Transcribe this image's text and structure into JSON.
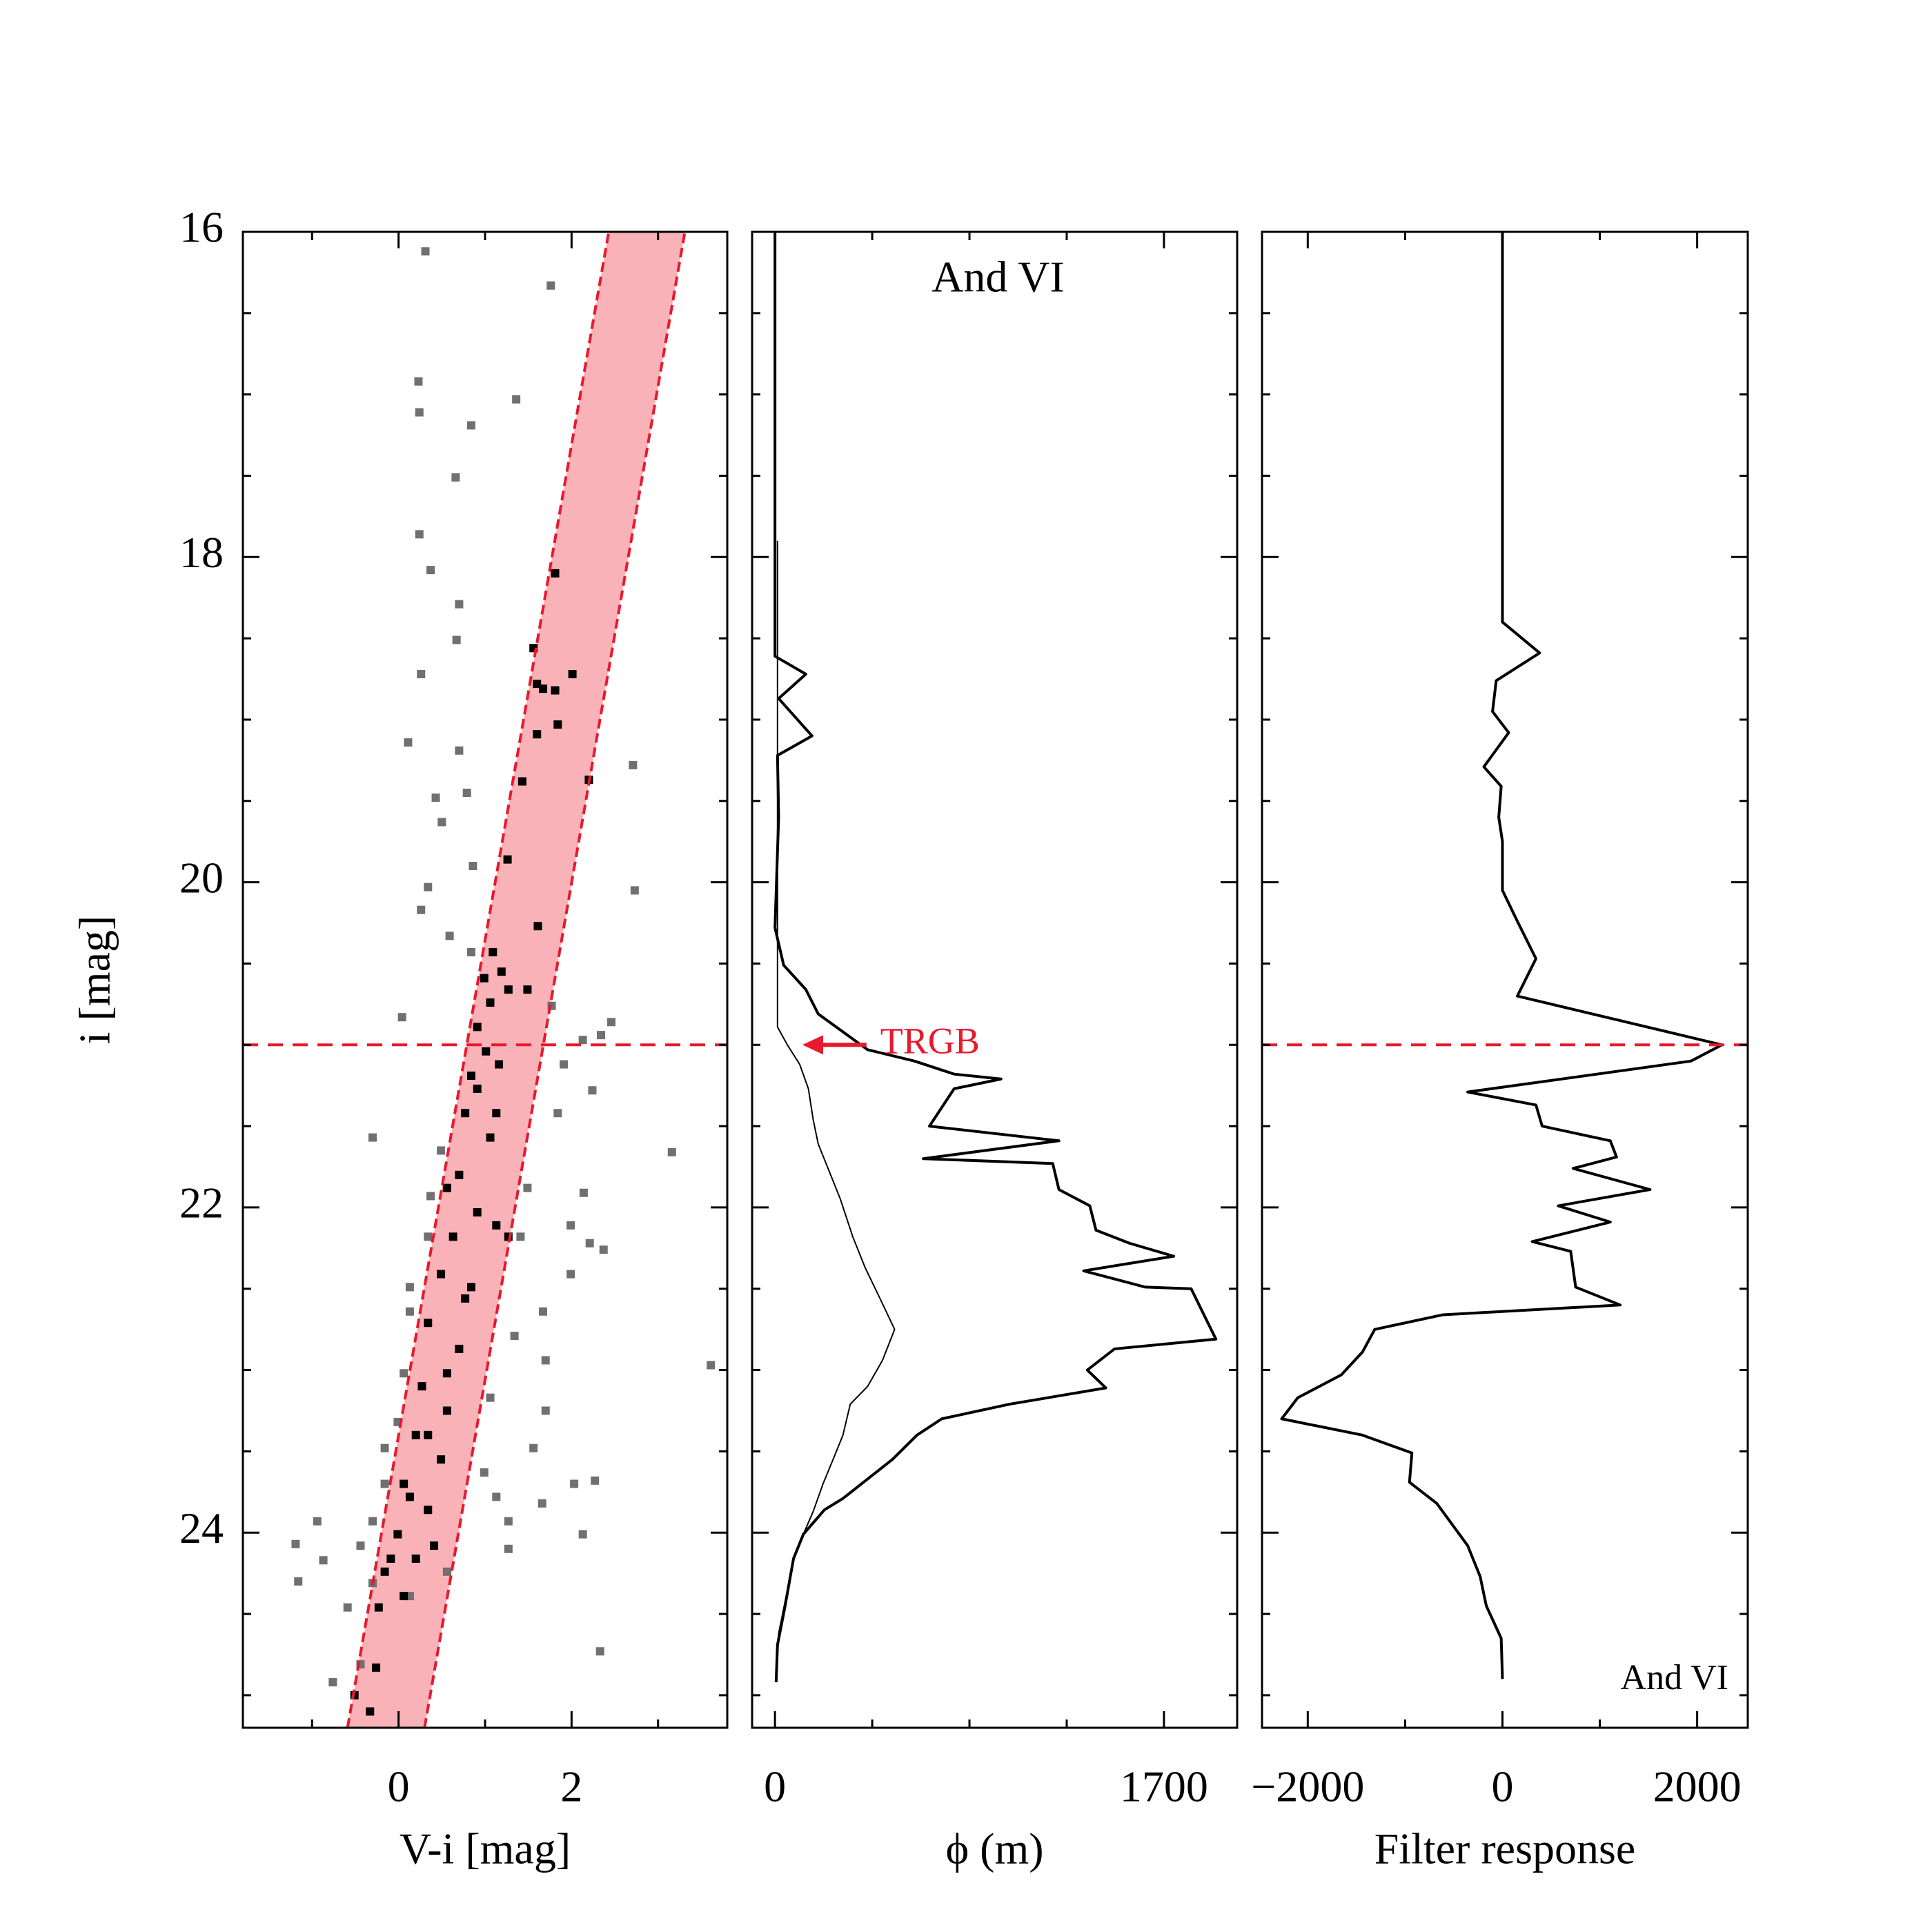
{
  "chart_data": [
    {
      "type": "scatter",
      "xlabel": "V-i [mag]",
      "ylabel": "i [mag]",
      "xlim": [
        -1.8,
        3.8
      ],
      "ylim": [
        16,
        25.2
      ],
      "xticks": [
        0,
        2
      ],
      "yticks": [
        16,
        18,
        20,
        22,
        24
      ],
      "xminorticks": [
        -1,
        1,
        3
      ],
      "yminorticks": [
        16.5,
        17,
        17.5,
        18.5,
        19,
        19.5,
        20.5,
        21,
        21.5,
        22.5,
        23,
        23.5,
        24.5,
        25
      ],
      "show_ytick_labels": true,
      "invert_y": true,
      "band": {
        "color": "#f9b3b8",
        "edge_color": "#e8192c",
        "left": {
          "x": [
            -0.59,
            2.43
          ],
          "y": [
            25.2,
            16
          ]
        },
        "right": {
          "x": [
            0.3,
            3.31
          ],
          "y": [
            25.2,
            16
          ]
        }
      },
      "hline": 21.0,
      "hline_color": "#e8192c",
      "series": [
        {
          "color": "#707070",
          "x": [
            0.31,
            1.76,
            0.23,
            0.24,
            1.36,
            0.84,
            0.66,
            0.24,
            0.37,
            0.7,
            0.67,
            0.26,
            0.11,
            0.7,
            0.43,
            0.79,
            2.71,
            0.5,
            0.26,
            0.34,
            0.86,
            2.73,
            0.59,
            0.84,
            0.04,
            1.77,
            2.46,
            2.34,
            1.91,
            2.24,
            3.16,
            -0.3,
            0.37,
            2.14,
            2.21,
            1.99,
            2.37,
            0.13,
            1.67,
            3.61,
            0.06,
            1.7,
            -0.16,
            1.56,
            2.03,
            2.27,
            -0.3,
            1.13,
            1.27,
            1.66,
            -0.94,
            -1.19,
            -0.87,
            -0.3,
            1.27,
            2.13,
            -1.16,
            -0.76,
            -0.44,
            2.33,
            -0.59,
            0.13,
            0.56,
            0.99,
            1.06,
            -0.01,
            1.34,
            1.41,
            0.34,
            1.99,
            0.13,
            -0.16,
            -0.44,
            1.7,
            1.49,
            0.49,
            1.84,
            2.13
          ],
          "y": [
            16.12,
            16.33,
            16.92,
            17.11,
            17.03,
            17.19,
            17.51,
            17.86,
            18.08,
            18.29,
            18.51,
            18.72,
            19.14,
            19.19,
            19.48,
            19.45,
            19.28,
            19.63,
            20.17,
            20.03,
            19.9,
            20.05,
            20.33,
            20.43,
            20.83,
            20.76,
            20.86,
            20.94,
            21.12,
            21.28,
            21.66,
            21.57,
            21.93,
            21.91,
            22.22,
            22.41,
            22.26,
            22.49,
            22.64,
            22.97,
            23.02,
            23.25,
            23.48,
            23.48,
            23.7,
            23.68,
            23.93,
            23.78,
            23.93,
            23.82,
            23.93,
            24.07,
            24.17,
            24.31,
            24.1,
            24.01,
            24.3,
            24.92,
            24.81,
            24.73,
            24.46,
            24.39,
            24.24,
            23.63,
            23.17,
            23.32,
            22.79,
            22.18,
            22.18,
            22.11,
            22.64,
            23.7,
            24.08,
            22.94,
            21.88,
            21.65,
            21.42,
            20.97
          ]
        },
        {
          "color": "#000000",
          "x": [
            1.81,
            1.56,
            1.6,
            1.67,
            1.81,
            2.01,
            1.84,
            1.6,
            2.2,
            1.43,
            1.26,
            1.61,
            1.09,
            1.19,
            1.27,
            1.49,
            0.99,
            1.06,
            0.91,
            1.01,
            0.84,
            1.16,
            0.77,
            1.06,
            0.7,
            0.91,
            0.63,
            1.13,
            0.49,
            0.84,
            0.34,
            0.7,
            0.27,
            0.56,
            0.2,
            0.49,
            0.06,
            0.34,
            -0.01,
            0.2,
            -0.16,
            0.06,
            -0.23,
            -0.51,
            -0.33,
            -0.26,
            0.41,
            1.27,
            0.56,
            0.91,
            1.13,
            0.77,
            0.56,
            0.13,
            -0.09,
            0.34
          ],
          "y": [
            18.1,
            18.56,
            18.78,
            18.81,
            18.82,
            18.72,
            19.03,
            19.09,
            19.37,
            19.38,
            19.86,
            20.27,
            20.43,
            20.55,
            20.66,
            20.66,
            20.59,
            20.74,
            20.89,
            21.04,
            21.19,
            21.12,
            21.42,
            21.57,
            21.8,
            22.03,
            22.18,
            22.11,
            22.41,
            22.49,
            22.71,
            22.87,
            23.1,
            23.25,
            23.4,
            23.55,
            23.7,
            23.86,
            24.01,
            24.16,
            24.24,
            24.39,
            24.46,
            25.0,
            25.1,
            24.83,
            24.08,
            22.18,
            21.88,
            21.27,
            21.42,
            22.56,
            23.02,
            23.78,
            24.16,
            23.4
          ]
        }
      ]
    },
    {
      "type": "line",
      "title": "And VI",
      "xlabel": "ϕ (m)",
      "xlim": [
        -100,
        2020
      ],
      "ylim": [
        16,
        25.2
      ],
      "xticks": [
        0,
        1700
      ],
      "yticks": [
        16,
        18,
        20,
        22,
        24
      ],
      "xminorticks": [
        425,
        850,
        1275
      ],
      "yminorticks": [
        16.5,
        17,
        17.5,
        18.5,
        19,
        19.5,
        20.5,
        21,
        21.5,
        22.5,
        23,
        23.5,
        24.5,
        25
      ],
      "show_ytick_labels": false,
      "invert_y": true,
      "annotation": {
        "text": "TRGB",
        "color": "#e8192c",
        "i": 21.0,
        "phi_from": 400,
        "phi_to": 120
      },
      "series": [
        {
          "color": "#000000",
          "width": 2,
          "i": [
            16.0,
            18.61,
            18.72,
            18.87,
            19.1,
            19.22,
            19.6,
            20.28,
            20.51,
            20.66,
            20.81,
            21.03,
            21.1,
            21.18,
            21.21,
            21.27,
            21.5,
            21.59,
            21.7,
            21.73,
            21.89,
            21.99,
            22.14,
            22.22,
            22.3,
            22.39,
            22.45,
            22.49,
            22.5,
            22.81,
            22.87,
            23.0,
            23.11,
            23.21,
            23.3,
            23.4,
            23.55,
            23.67,
            23.79,
            23.86,
            24.01,
            24.16,
            24.46,
            24.69,
            24.92
          ],
          "values": [
            0,
            0,
            135,
            16,
            162,
            11,
            16,
            0,
            38,
            135,
            189,
            405,
            610,
            783,
            988,
            783,
            675,
            1241,
            648,
            1214,
            1241,
            1376,
            1403,
            1549,
            1743,
            1349,
            1511,
            1619,
            1819,
            1927,
            1484,
            1365,
            1446,
            1025,
            729,
            621,
            513,
            405,
            297,
            216,
            124,
            81,
            43,
            11,
            5
          ]
        },
        {
          "color": "#000000",
          "width": 1,
          "i": [
            17.9,
            20.89,
            21.0,
            21.12,
            21.27,
            21.46,
            21.61,
            21.76,
            21.95,
            22.18,
            22.37,
            22.56,
            22.75,
            22.94,
            23.1,
            23.21,
            23.4,
            23.55,
            23.7,
            23.87,
            24.01,
            24.17,
            24.39,
            24.62,
            24.88
          ],
          "values": [
            11,
            11,
            54,
            108,
            146,
            167,
            189,
            232,
            286,
            340,
            394,
            459,
            523,
            470,
            405,
            329,
            297,
            254,
            210,
            167,
            124,
            81,
            49,
            16,
            5
          ]
        }
      ]
    },
    {
      "type": "line",
      "xlabel": "Filter response",
      "annotation": {
        "text": "And VI"
      },
      "xlim": [
        -2470,
        2520
      ],
      "ylim": [
        16,
        25.2
      ],
      "xticks": [
        {
          "value": -2000,
          "label": "−2000"
        },
        0,
        2000
      ],
      "yticks": [
        16,
        18,
        20,
        22,
        24
      ],
      "xminorticks": [
        -1000,
        1000
      ],
      "yminorticks": [
        16.5,
        17,
        17.5,
        18.5,
        19,
        19.5,
        20.5,
        21,
        21.5,
        22.5,
        23,
        23.5,
        24.5,
        25
      ],
      "show_ytick_labels": false,
      "invert_y": true,
      "hline": 21.0,
      "hline_color": "#e8192c",
      "series": [
        {
          "color": "#000000",
          "width": 2,
          "i": [
            16.0,
            18.4,
            18.59,
            18.76,
            18.95,
            19.08,
            19.29,
            19.41,
            19.6,
            19.75,
            20.05,
            20.24,
            20.47,
            20.7,
            21.0,
            21.1,
            21.29,
            21.37,
            21.5,
            21.59,
            21.69,
            21.76,
            21.89,
            21.99,
            22.09,
            22.21,
            22.27,
            22.49,
            22.6,
            22.66,
            22.75,
            22.89,
            23.03,
            23.17,
            23.3,
            23.4,
            23.51,
            23.69,
            23.82,
            24.08,
            24.27,
            24.45,
            24.65,
            24.9
          ],
          "values": [
            0,
            0,
            382,
            -64,
            -102,
            64,
            -191,
            -13,
            -38,
            0,
            0,
            153,
            344,
            153,
            2255,
            1936,
            -357,
            344,
            408,
            1108,
            1172,
            726,
            1516,
            573,
            1108,
            306,
            701,
            752,
            1210,
            -611,
            -1312,
            -1439,
            -1656,
            -2102,
            -2268,
            -1439,
            -930,
            -955,
            -675,
            -357,
            -229,
            -166,
            -13,
            0
          ]
        }
      ]
    }
  ]
}
